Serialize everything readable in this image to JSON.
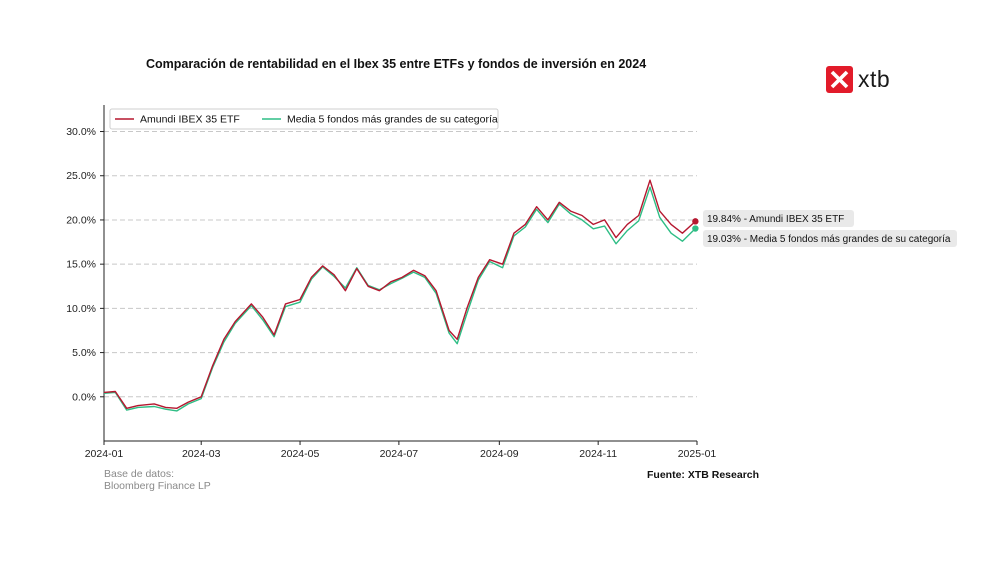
{
  "chart_data": {
    "type": "line",
    "title": "Comparación de rentabilidad en el Ibex 35 entre ETFs y fondos de inversión en 2024",
    "xlabel": "",
    "ylabel": "",
    "x_ticks": [
      "2024-01",
      "2024-03",
      "2024-05",
      "2024-07",
      "2024-09",
      "2024-11",
      "2025-01"
    ],
    "y_ticks": [
      "0.0%",
      "5.0%",
      "10.0%",
      "15.0%",
      "20.0%",
      "25.0%",
      "30.0%"
    ],
    "ylim": [
      -5,
      33
    ],
    "xlim": [
      "2024-01-01",
      "2025-01-01"
    ],
    "grid": "horizontal dashed",
    "legend_position": "top-left",
    "x": [
      "2024-01-01",
      "2024-01-08",
      "2024-01-15",
      "2024-01-22",
      "2024-02-01",
      "2024-02-08",
      "2024-02-15",
      "2024-02-22",
      "2024-03-01",
      "2024-03-08",
      "2024-03-15",
      "2024-03-22",
      "2024-04-01",
      "2024-04-08",
      "2024-04-15",
      "2024-04-22",
      "2024-05-01",
      "2024-05-08",
      "2024-05-15",
      "2024-05-22",
      "2024-05-29",
      "2024-06-05",
      "2024-06-12",
      "2024-06-19",
      "2024-06-26",
      "2024-07-03",
      "2024-07-10",
      "2024-07-17",
      "2024-07-24",
      "2024-08-01",
      "2024-08-06",
      "2024-08-12",
      "2024-08-19",
      "2024-08-26",
      "2024-09-03",
      "2024-09-10",
      "2024-09-17",
      "2024-09-24",
      "2024-10-01",
      "2024-10-08",
      "2024-10-15",
      "2024-10-22",
      "2024-10-29",
      "2024-11-05",
      "2024-11-12",
      "2024-11-19",
      "2024-11-26",
      "2024-12-03",
      "2024-12-09",
      "2024-12-16",
      "2024-12-23",
      "2024-12-31"
    ],
    "series": [
      {
        "name": "Amundi IBEX 35 ETF",
        "color": "#b5172f",
        "values": [
          0.5,
          0.6,
          -1.3,
          -1.0,
          -0.8,
          -1.2,
          -1.3,
          -0.6,
          0.0,
          3.5,
          6.5,
          8.5,
          10.5,
          9.0,
          7.0,
          10.5,
          11.0,
          13.5,
          14.8,
          13.8,
          12.0,
          14.5,
          12.5,
          12.0,
          13.0,
          13.5,
          14.3,
          13.7,
          12.0,
          7.5,
          6.5,
          10.0,
          13.5,
          15.5,
          15.0,
          18.5,
          19.5,
          21.5,
          20.0,
          22.0,
          21.0,
          20.5,
          19.5,
          20.0,
          18.0,
          19.5,
          20.5,
          24.5,
          21.0,
          19.5,
          18.5,
          19.84
        ]
      },
      {
        "name": "Media 5 fondos más grandes de su categoría",
        "color": "#2ebd85",
        "values": [
          0.4,
          0.5,
          -1.5,
          -1.2,
          -1.1,
          -1.4,
          -1.6,
          -0.8,
          -0.2,
          3.3,
          6.2,
          8.3,
          10.3,
          8.7,
          6.8,
          10.2,
          10.7,
          13.3,
          14.7,
          13.6,
          12.3,
          14.6,
          12.6,
          12.1,
          12.8,
          13.4,
          14.1,
          13.5,
          11.7,
          7.2,
          6.0,
          9.4,
          13.2,
          15.3,
          14.6,
          18.2,
          19.2,
          21.2,
          19.7,
          21.8,
          20.7,
          20.0,
          19.0,
          19.3,
          17.3,
          18.8,
          19.9,
          23.7,
          20.3,
          18.5,
          17.6,
          19.03
        ]
      }
    ],
    "end_labels": [
      "19.84% - Amundi IBEX 35 ETF",
      "19.03% - Media 5 fondos más grandes de su categoría"
    ]
  },
  "logo": {
    "text": "xtb",
    "color": "#e21b2a"
  },
  "source_left": {
    "line1": "Base de datos:",
    "line2": "Bloomberg Finance LP"
  },
  "source_right": "Fuente: XTB Research"
}
